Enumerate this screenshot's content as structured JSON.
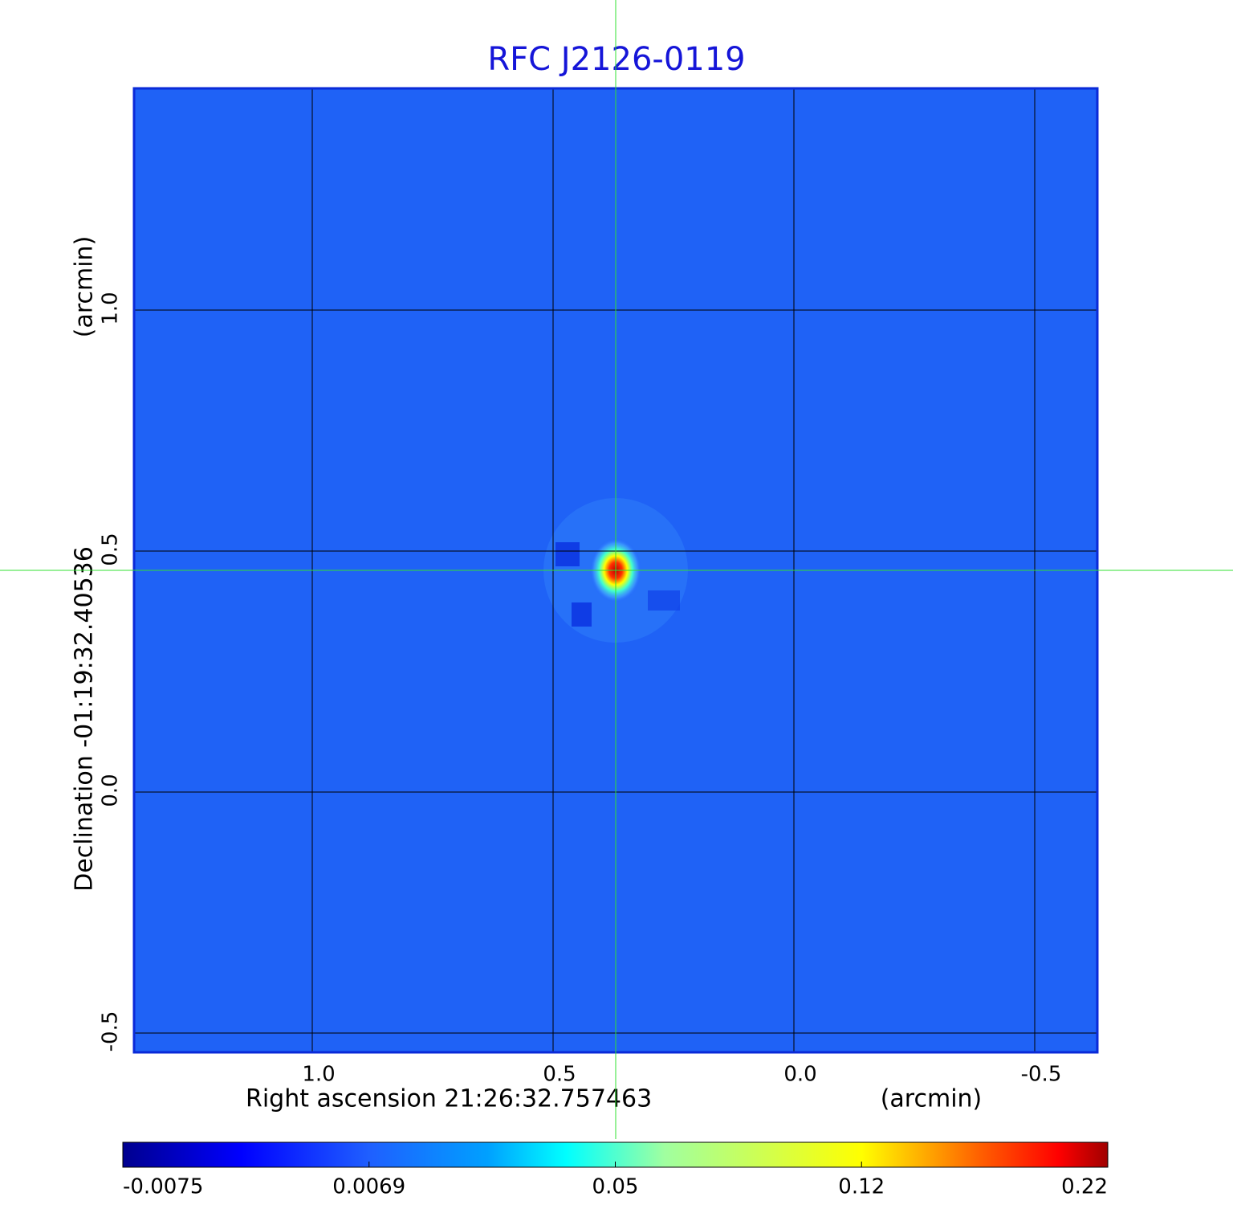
{
  "chart_data": {
    "type": "image",
    "title": "RFC J2126-0119",
    "x_label": "Right ascension  21:26:32.757463",
    "x_unit": "(arcmin)",
    "y_label": "Declination  -01:19:32.40536",
    "y_unit": "(arcmin)",
    "xlim": [
      1.37,
      -0.63
    ],
    "ylim": [
      -0.54,
      1.46
    ],
    "xticks": [
      {
        "value": 1,
        "label": "1.0"
      },
      0.5,
      {
        "value": 0,
        "label": "0.0"
      },
      -0.5
    ],
    "yticks": [
      -0.5,
      {
        "value": 0,
        "label": "0.0"
      },
      0.5,
      {
        "value": 1,
        "label": "1.0"
      }
    ],
    "grid": true,
    "crosshair": {
      "x": 0.37,
      "y": 0.46
    },
    "colorbar": {
      "colormap": "jet",
      "ticks": [
        -0.0075,
        0.0069,
        0.05,
        0.12,
        0.22
      ]
    }
  }
}
